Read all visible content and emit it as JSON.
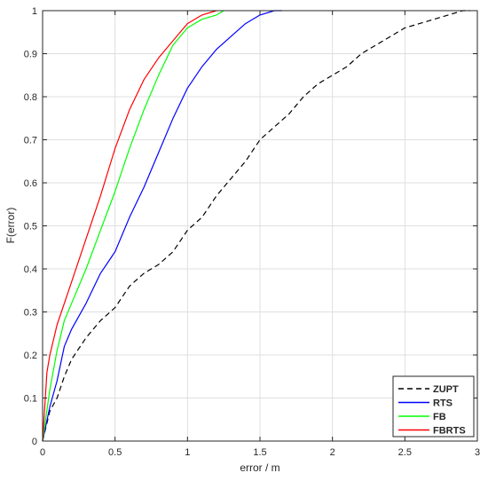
{
  "chart_data": {
    "type": "line",
    "title": "",
    "xlabel": "error / m",
    "ylabel": "F(error)",
    "xlim": [
      0,
      3
    ],
    "ylim": [
      0,
      1
    ],
    "xticks": [
      0,
      0.5,
      1,
      1.5,
      2,
      2.5,
      3
    ],
    "xtick_labels": [
      "0",
      "0.5",
      "1",
      "1.5",
      "2",
      "2.5",
      "3"
    ],
    "yticks": [
      0,
      0.1,
      0.2,
      0.3,
      0.4,
      0.5,
      0.6,
      0.7,
      0.8,
      0.9,
      1
    ],
    "ytick_labels": [
      "0",
      "0.1",
      "0.2",
      "0.3",
      "0.4",
      "0.5",
      "0.6",
      "0.7",
      "0.8",
      "0.9",
      "1"
    ],
    "grid": true,
    "legend_position": "bottom-right",
    "series": [
      {
        "name": "ZUPT",
        "color": "#000000",
        "dash": "dashed",
        "x": [
          0,
          0.05,
          0.1,
          0.15,
          0.2,
          0.3,
          0.4,
          0.5,
          0.6,
          0.7,
          0.8,
          0.9,
          1.0,
          1.1,
          1.2,
          1.3,
          1.4,
          1.5,
          1.6,
          1.7,
          1.8,
          1.9,
          2.0,
          2.1,
          2.2,
          2.3,
          2.4,
          2.5,
          2.6,
          2.7,
          2.8,
          2.9,
          2.95
        ],
        "y": [
          0,
          0.07,
          0.1,
          0.15,
          0.19,
          0.24,
          0.28,
          0.31,
          0.36,
          0.39,
          0.41,
          0.44,
          0.49,
          0.52,
          0.57,
          0.61,
          0.65,
          0.7,
          0.73,
          0.76,
          0.8,
          0.83,
          0.85,
          0.87,
          0.9,
          0.92,
          0.94,
          0.96,
          0.97,
          0.98,
          0.99,
          1.0,
          1.0
        ]
      },
      {
        "name": "RTS",
        "color": "#0000ff",
        "dash": "solid",
        "x": [
          0,
          0.05,
          0.1,
          0.15,
          0.2,
          0.3,
          0.4,
          0.5,
          0.6,
          0.7,
          0.8,
          0.9,
          1.0,
          1.1,
          1.2,
          1.3,
          1.4,
          1.5,
          1.6,
          1.65
        ],
        "y": [
          0,
          0.08,
          0.14,
          0.22,
          0.26,
          0.32,
          0.39,
          0.44,
          0.52,
          0.59,
          0.67,
          0.75,
          0.82,
          0.87,
          0.91,
          0.94,
          0.97,
          0.99,
          1.0,
          1.0
        ]
      },
      {
        "name": "FB",
        "color": "#00ff00",
        "dash": "solid",
        "x": [
          0,
          0.05,
          0.1,
          0.15,
          0.2,
          0.3,
          0.4,
          0.5,
          0.6,
          0.7,
          0.8,
          0.9,
          1.0,
          1.1,
          1.2,
          1.25
        ],
        "y": [
          0,
          0.12,
          0.21,
          0.28,
          0.32,
          0.4,
          0.49,
          0.58,
          0.68,
          0.77,
          0.85,
          0.92,
          0.96,
          0.98,
          0.99,
          1.0
        ]
      },
      {
        "name": "FBRTS",
        "color": "#ff0000",
        "dash": "solid",
        "x": [
          0,
          0.03,
          0.05,
          0.1,
          0.15,
          0.2,
          0.3,
          0.4,
          0.5,
          0.6,
          0.7,
          0.8,
          0.9,
          1.0,
          1.1,
          1.2
        ],
        "y": [
          0,
          0.16,
          0.2,
          0.27,
          0.32,
          0.37,
          0.47,
          0.57,
          0.68,
          0.77,
          0.84,
          0.89,
          0.93,
          0.97,
          0.99,
          1.0
        ]
      }
    ]
  }
}
